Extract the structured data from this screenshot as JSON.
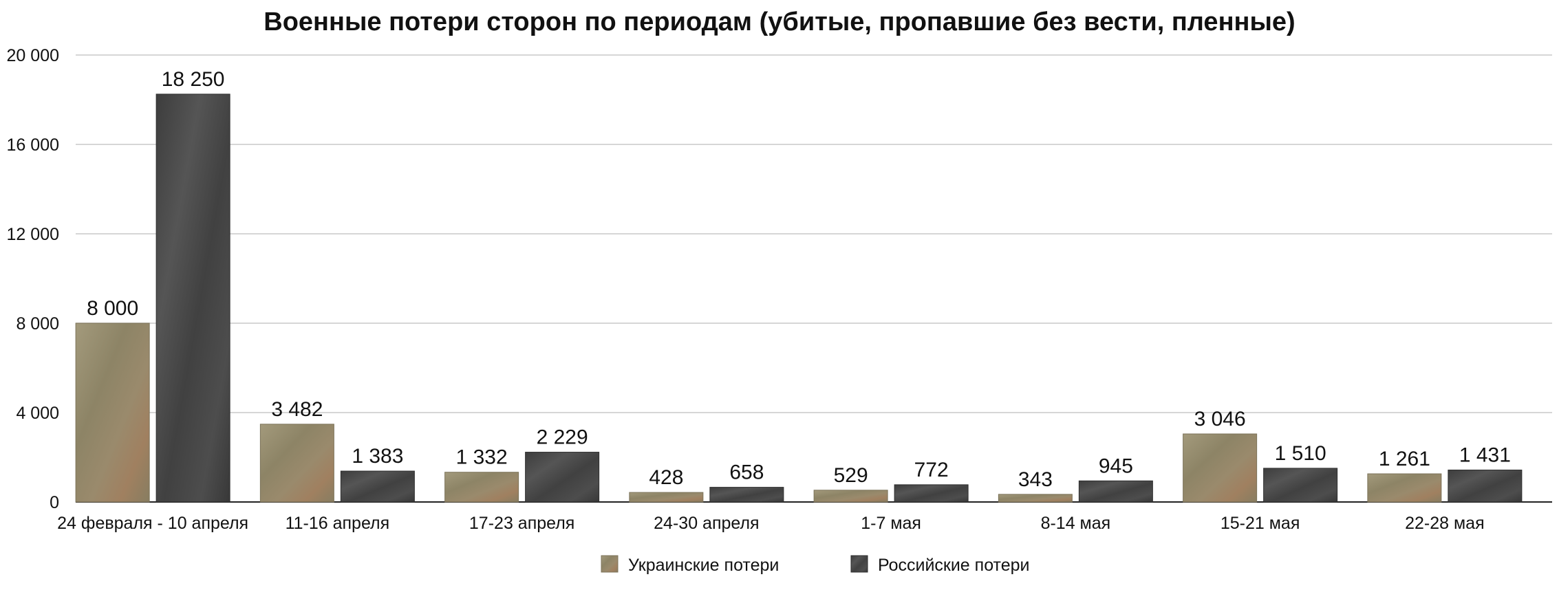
{
  "chart_data": {
    "type": "bar",
    "title": "Военные потери сторон по периодам (убитые, пропавшие без вести, пленные)",
    "xlabel": "",
    "ylabel": "",
    "ylim": [
      0,
      20000
    ],
    "yticks": [
      0,
      4000,
      8000,
      12000,
      16000,
      20000
    ],
    "ytick_labels": [
      "0",
      "4 000",
      "8 000",
      "12 000",
      "16 000",
      "20 000"
    ],
    "grid": true,
    "legend_position": "bottom-center",
    "categories": [
      "24 февраля - 10 апреля",
      "11-16 апреля",
      "17-23 апреля",
      "24-30 апреля",
      "1-7 мая",
      "8-14 мая",
      "15-21 мая",
      "22-28 мая"
    ],
    "series": [
      {
        "name": "Украинские потери",
        "color": "#8f8568",
        "values": [
          8000,
          3482,
          1332,
          428,
          529,
          343,
          3046,
          1261
        ],
        "value_labels": [
          "8 000",
          "3 482",
          "1 332",
          "428",
          "529",
          "343",
          "3 046",
          "1 261"
        ]
      },
      {
        "name": "Российские потери",
        "color": "#474747",
        "values": [
          18250,
          1383,
          2229,
          658,
          772,
          945,
          1510,
          1431
        ],
        "value_labels": [
          "18 250",
          "1 383",
          "2 229",
          "658",
          "772",
          "945",
          "1 510",
          "1 431"
        ]
      }
    ]
  }
}
